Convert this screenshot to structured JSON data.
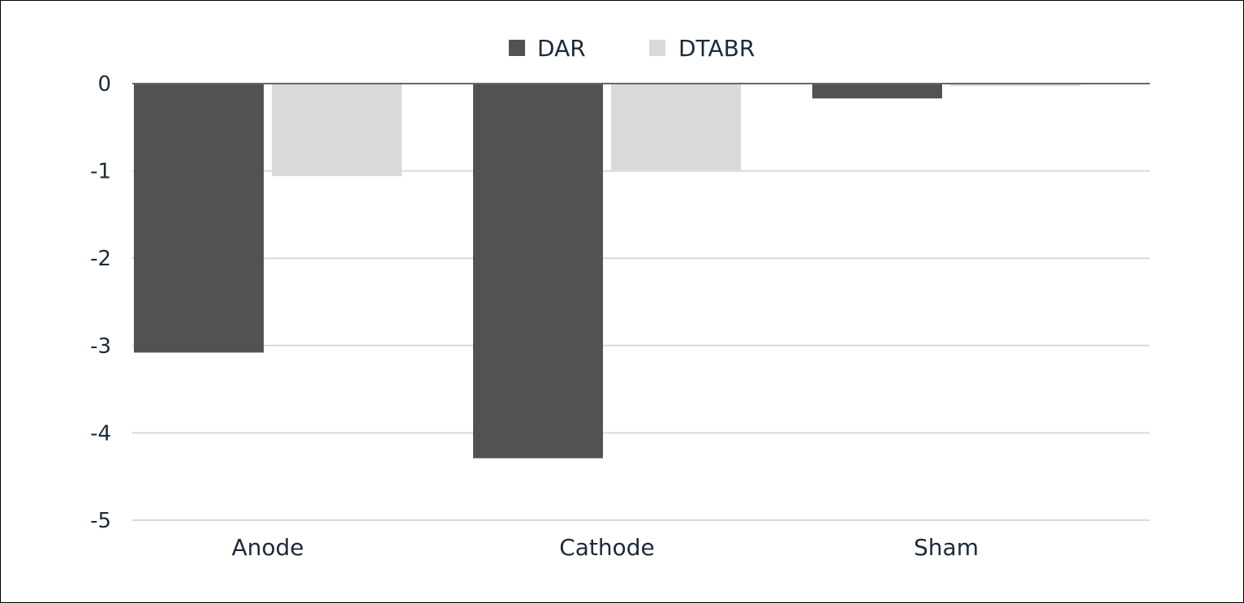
{
  "chart_data": {
    "type": "bar",
    "title": "",
    "xlabel": "",
    "ylabel": "",
    "categories": [
      "Anode",
      "Cathode",
      "Sham"
    ],
    "series": [
      {
        "name": "DAR",
        "color": "#525252",
        "values": [
          -3.08,
          -4.29,
          -0.17
        ]
      },
      {
        "name": "DTABR",
        "color": "#d9d9d9",
        "values": [
          -1.06,
          -0.99,
          -0.03
        ]
      }
    ],
    "ylim": [
      -5,
      0
    ],
    "yticks": [
      0,
      -1,
      -2,
      -3,
      -4,
      -5
    ],
    "grid": true,
    "legend_position": "top-center",
    "colors": {
      "text": "#1b2a3a",
      "grid": "#d9d9d9",
      "zero_line": "#5a6a78"
    }
  }
}
